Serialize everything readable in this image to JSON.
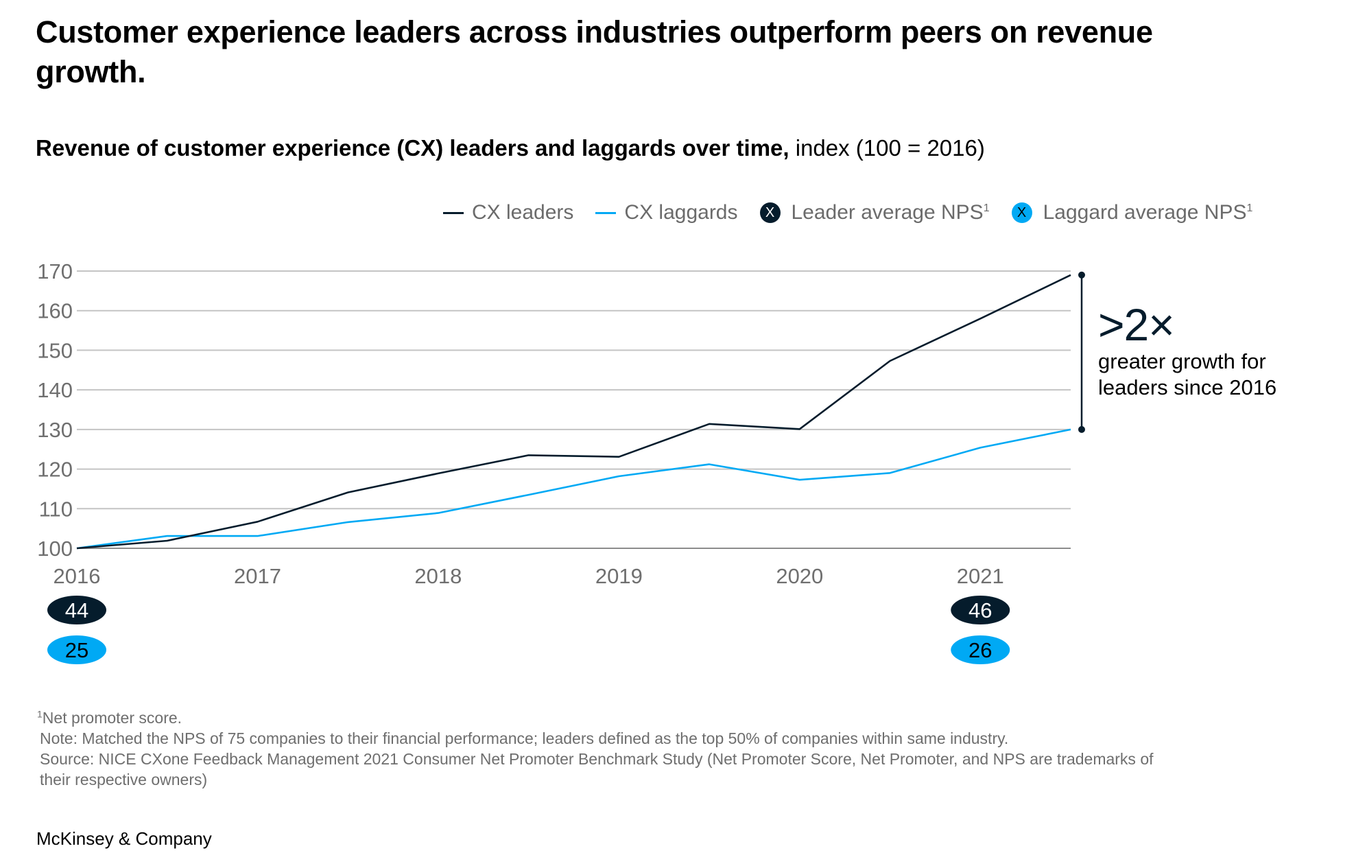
{
  "header": {
    "title": "Customer experience leaders across industries outperform peers on revenue growth.",
    "subtitle_bold": "Revenue of customer experience (CX) leaders and laggards over time,",
    "subtitle_light": " index (100 = 2016)"
  },
  "legend": {
    "items": [
      {
        "label": "CX leaders",
        "kind": "line",
        "color": "#051c2c"
      },
      {
        "label": "CX laggards",
        "kind": "line",
        "color": "#00a9f4"
      },
      {
        "label": "Leader average NPS",
        "sup": "1",
        "kind": "dot",
        "glyph": "X",
        "color": "#051c2c",
        "glyph_color": "#ffffff"
      },
      {
        "label": "Laggard average NPS",
        "sup": "1",
        "kind": "dot",
        "glyph": "X",
        "color": "#00a9f4",
        "glyph_color": "#000000"
      }
    ]
  },
  "colors": {
    "leaders": "#051c2c",
    "laggards": "#00a9f4",
    "grid": "#c4c4c4",
    "axis_text": "#6f6f6f"
  },
  "chart_data": {
    "type": "line",
    "title": "Revenue of customer experience (CX) leaders and laggards over time, index (100 = 2016)",
    "xlabel": "",
    "ylabel": "",
    "x": [
      2016,
      2016.5,
      2017,
      2017.5,
      2018,
      2018.5,
      2019,
      2019.5,
      2020,
      2020.5,
      2021,
      2021.5
    ],
    "x_ticks": [
      "2016",
      "2017",
      "2018",
      "2019",
      "2020",
      "2021"
    ],
    "x_tick_values": [
      2016,
      2017,
      2018,
      2019,
      2020,
      2021
    ],
    "xlim": [
      2016,
      2021.5
    ],
    "y_ticks": [
      "100",
      "110",
      "120",
      "130",
      "140",
      "150",
      "160",
      "170"
    ],
    "ylim": [
      100,
      170
    ],
    "grid": true,
    "legend_position": "top-right",
    "series": [
      {
        "name": "CX leaders",
        "color": "#051c2c",
        "values": [
          100,
          101.9,
          106.7,
          114.1,
          118.9,
          123.5,
          123.1,
          131.4,
          130.1,
          147.3,
          158.0,
          169.0
        ]
      },
      {
        "name": "CX laggards",
        "color": "#00a9f4",
        "values": [
          100,
          103.1,
          103.1,
          106.6,
          108.9,
          113.5,
          118.2,
          121.2,
          117.3,
          119.0,
          125.4,
          130.0
        ]
      }
    ],
    "nps_badges": [
      {
        "year": 2016,
        "leader": "44",
        "laggard": "25"
      },
      {
        "year": 2021,
        "leader": "46",
        "laggard": "26"
      }
    ],
    "annotation": {
      "bracket_from": 130,
      "bracket_to": 169,
      "at_x": 2021.5,
      "headline": ">2×",
      "line1": "greater growth for",
      "line2": "leaders since 2016"
    }
  },
  "footnotes": {
    "sup": "1",
    "def": "Net promoter score.",
    "note": "Note: Matched the NPS of 75 companies to their financial performance; leaders defined as the top 50% of companies within same industry.",
    "source_line1": "Source: NICE CXone Feedback Management 2021 Consumer Net Promoter Benchmark Study (Net Promoter Score, Net Promoter, and NPS are trademarks of",
    "source_line2": "their respective owners)"
  },
  "brand": "McKinsey & Company"
}
